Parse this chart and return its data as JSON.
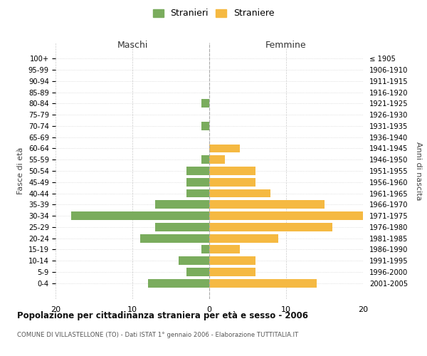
{
  "age_groups": [
    "100+",
    "95-99",
    "90-94",
    "85-89",
    "80-84",
    "75-79",
    "70-74",
    "65-69",
    "60-64",
    "55-59",
    "50-54",
    "45-49",
    "40-44",
    "35-39",
    "30-34",
    "25-29",
    "20-24",
    "15-19",
    "10-14",
    "5-9",
    "0-4"
  ],
  "birth_years": [
    "≤ 1905",
    "1906-1910",
    "1911-1915",
    "1916-1920",
    "1921-1925",
    "1926-1930",
    "1931-1935",
    "1936-1940",
    "1941-1945",
    "1946-1950",
    "1951-1955",
    "1956-1960",
    "1961-1965",
    "1966-1970",
    "1971-1975",
    "1976-1980",
    "1981-1985",
    "1986-1990",
    "1991-1995",
    "1996-2000",
    "2001-2005"
  ],
  "males": [
    0,
    0,
    0,
    0,
    1,
    0,
    1,
    0,
    0,
    1,
    3,
    3,
    3,
    7,
    18,
    7,
    9,
    1,
    4,
    3,
    8
  ],
  "females": [
    0,
    0,
    0,
    0,
    0,
    0,
    0,
    0,
    4,
    2,
    6,
    6,
    8,
    15,
    20,
    16,
    9,
    4,
    6,
    6,
    14
  ],
  "male_color": "#7aac5d",
  "female_color": "#f5b942",
  "background_color": "#ffffff",
  "grid_color": "#cccccc",
  "title": "Popolazione per cittadinanza straniera per età e sesso - 2006",
  "subtitle": "COMUNE DI VILLASTELLONE (TO) - Dati ISTAT 1° gennaio 2006 - Elaborazione TUTTITALIA.IT",
  "xlabel_left": "Maschi",
  "xlabel_right": "Femmine",
  "ylabel_left": "Fasce di età",
  "ylabel_right": "Anni di nascita",
  "legend_male": "Stranieri",
  "legend_female": "Straniere",
  "xlim": 20,
  "bar_height": 0.75
}
